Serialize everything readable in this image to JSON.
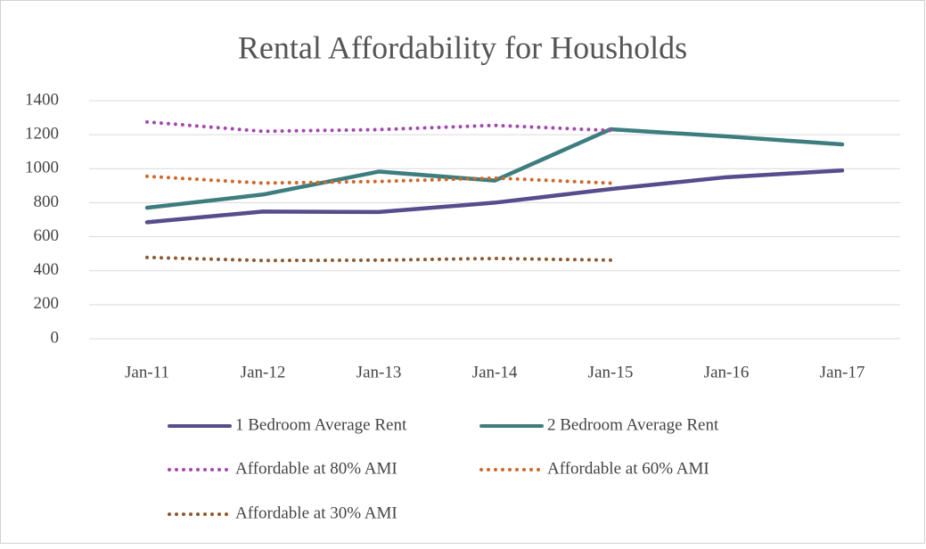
{
  "chart_data": {
    "type": "line",
    "title": "Rental Affordability for Housholds",
    "categories": [
      "Jan-11",
      "Jan-12",
      "Jan-13",
      "Jan-14",
      "Jan-15",
      "Jan-16",
      "Jan-17"
    ],
    "series": [
      {
        "name": "1 Bedroom Average Rent",
        "color": "#574c8c",
        "style": "solid",
        "values": [
          685,
          748,
          745,
          800,
          880,
          950,
          990
        ]
      },
      {
        "name": "2 Bedroom Average Rent",
        "color": "#3e7d7e",
        "style": "solid",
        "values": [
          770,
          848,
          983,
          930,
          1232,
          1190,
          1143
        ]
      },
      {
        "name": "Affordable at 80% AMI",
        "color": "#a349ad",
        "style": "dotted",
        "values": [
          1275,
          1220,
          1230,
          1255,
          1225,
          null,
          null
        ]
      },
      {
        "name": "Affordable at 60% AMI",
        "color": "#cc692b",
        "style": "dotted",
        "values": [
          955,
          915,
          925,
          945,
          915,
          null,
          null
        ]
      },
      {
        "name": "Affordable at 30% AMI",
        "color": "#8c5a32",
        "style": "dotted",
        "values": [
          478,
          460,
          462,
          472,
          462,
          null,
          null
        ]
      }
    ],
    "ylim": [
      0,
      1400
    ],
    "yticks": [
      0,
      200,
      400,
      600,
      800,
      1000,
      1200,
      1400
    ],
    "grid": true,
    "legend": "bottom"
  }
}
